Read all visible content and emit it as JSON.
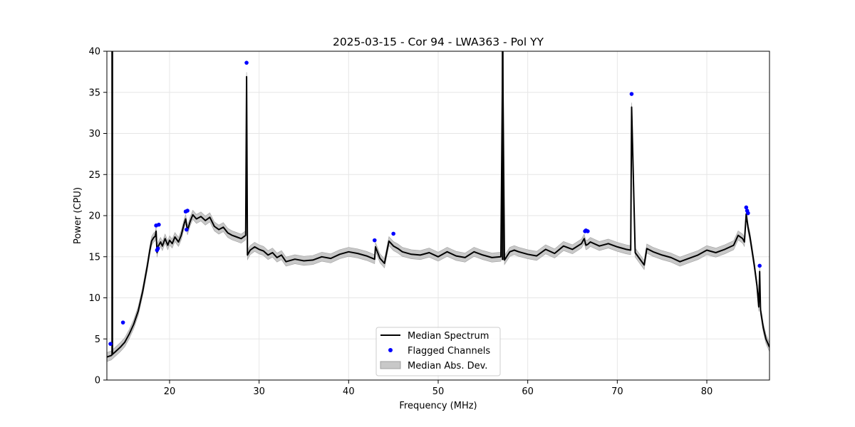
{
  "chart_data": {
    "type": "line",
    "title": "2025-03-15 - Cor 94 - LWA363 - Pol YY",
    "xlabel": "Frequency (MHz)",
    "ylabel": "Power (CPU)",
    "xlim": [
      13.0,
      87.0
    ],
    "ylim": [
      0,
      40
    ],
    "xticks": [
      20,
      30,
      40,
      50,
      60,
      70,
      80
    ],
    "yticks": [
      0,
      5,
      10,
      15,
      20,
      25,
      30,
      35,
      40
    ],
    "grid": true,
    "legend_position": "lower-center",
    "legend": [
      "Median Spectrum",
      "Flagged Channels",
      "Median Abs. Dev."
    ],
    "colors": {
      "median": "#000000",
      "flagged": "#0000ff",
      "mad_fill": "#c8c8c8",
      "mad_edge": "#a0a0a0",
      "grid": "#e6e6e6"
    },
    "series": [
      {
        "name": "Median Spectrum",
        "x": [
          13.0,
          13.5,
          13.6,
          13.7,
          13.8,
          14.0,
          14.5,
          15.0,
          15.5,
          16.0,
          16.5,
          17.0,
          17.5,
          17.8,
          18.0,
          18.2,
          18.4,
          18.5,
          18.6,
          18.7,
          19.0,
          19.2,
          19.5,
          19.8,
          20.0,
          20.3,
          20.6,
          21.0,
          21.3,
          21.6,
          21.8,
          22.0,
          22.3,
          22.6,
          23.0,
          23.5,
          24.0,
          24.5,
          25.0,
          25.5,
          26.0,
          26.5,
          27.0,
          27.5,
          28.0,
          28.5,
          28.6,
          28.7,
          29.0,
          29.5,
          30.0,
          30.5,
          31.0,
          31.5,
          32.0,
          32.5,
          33.0,
          34.0,
          35.0,
          36.0,
          37.0,
          38.0,
          39.0,
          40.0,
          41.0,
          42.0,
          42.9,
          43.0,
          43.5,
          44.0,
          44.5,
          45.0,
          45.5,
          46.0,
          47.0,
          48.0,
          49.0,
          50.0,
          51.0,
          52.0,
          53.0,
          54.0,
          55.0,
          56.0,
          57.0,
          57.2,
          57.4,
          58.0,
          58.5,
          59.0,
          60.0,
          61.0,
          62.0,
          63.0,
          64.0,
          65.0,
          66.0,
          66.3,
          66.5,
          66.7,
          67.0,
          68.0,
          69.0,
          70.0,
          71.0,
          71.5,
          71.6,
          72.0,
          73.0,
          73.3,
          74.0,
          75.0,
          76.0,
          77.0,
          78.0,
          79.0,
          80.0,
          81.0,
          82.0,
          83.0,
          83.5,
          84.0,
          84.2,
          84.4,
          84.6,
          84.8,
          85.0,
          85.3,
          85.6,
          85.8,
          85.9,
          86.0,
          86.3,
          86.6,
          87.0
        ],
        "y": [
          2.8,
          3.0,
          3.1,
          3.2,
          3.3,
          3.5,
          4.0,
          4.6,
          5.6,
          6.8,
          8.4,
          10.8,
          13.8,
          15.8,
          16.9,
          17.3,
          17.5,
          18.1,
          15.5,
          16.2,
          16.8,
          16.3,
          17.2,
          16.4,
          17.0,
          16.6,
          17.4,
          16.8,
          17.6,
          18.9,
          19.6,
          18.2,
          19.3,
          20.1,
          19.6,
          19.9,
          19.4,
          19.8,
          18.7,
          18.3,
          18.6,
          17.9,
          17.6,
          17.4,
          17.2,
          17.6,
          36.9,
          15.2,
          15.8,
          16.2,
          15.9,
          15.7,
          15.2,
          15.5,
          14.9,
          15.2,
          14.4,
          14.7,
          14.5,
          14.6,
          15.0,
          14.8,
          15.3,
          15.6,
          15.4,
          15.1,
          14.7,
          16.2,
          14.8,
          14.2,
          16.9,
          16.3,
          16.0,
          15.6,
          15.3,
          15.2,
          15.5,
          15.0,
          15.6,
          15.1,
          14.9,
          15.6,
          15.2,
          14.9,
          15.0,
          40.0,
          14.6,
          15.6,
          15.8,
          15.6,
          15.3,
          15.1,
          15.9,
          15.4,
          16.3,
          15.9,
          16.6,
          17.2,
          16.4,
          16.5,
          16.8,
          16.3,
          16.6,
          16.2,
          15.9,
          15.8,
          33.2,
          15.5,
          14.0,
          16.0,
          15.6,
          15.2,
          14.9,
          14.4,
          14.8,
          15.2,
          15.8,
          15.5,
          15.9,
          16.4,
          17.6,
          17.2,
          16.8,
          20.2,
          18.6,
          17.5,
          16.1,
          14.0,
          11.5,
          8.9,
          13.2,
          8.5,
          6.4,
          5.0,
          4.0
        ]
      },
      {
        "name": "Flagged Channels",
        "x": [
          13.4,
          14.8,
          18.5,
          18.6,
          18.7,
          18.8,
          21.8,
          21.9,
          22.0,
          28.6,
          42.9,
          45.0,
          66.4,
          66.5,
          66.7,
          71.6,
          84.4,
          84.5,
          84.6,
          85.9
        ],
        "y": [
          4.4,
          7.0,
          18.8,
          15.8,
          16.0,
          18.9,
          20.5,
          18.3,
          20.6,
          38.6,
          17.0,
          17.8,
          18.1,
          18.2,
          18.1,
          34.8,
          21.0,
          20.6,
          20.3,
          13.9
        ]
      }
    ],
    "spikes": [
      {
        "name": "spike-13.6",
        "x": 13.6,
        "y0": 3.1,
        "y1": 40.0
      },
      {
        "name": "spike-57.2",
        "x": 57.2,
        "y0": 14.6,
        "y1": 40.0
      }
    ],
    "mad_halfwidth": 0.55
  }
}
